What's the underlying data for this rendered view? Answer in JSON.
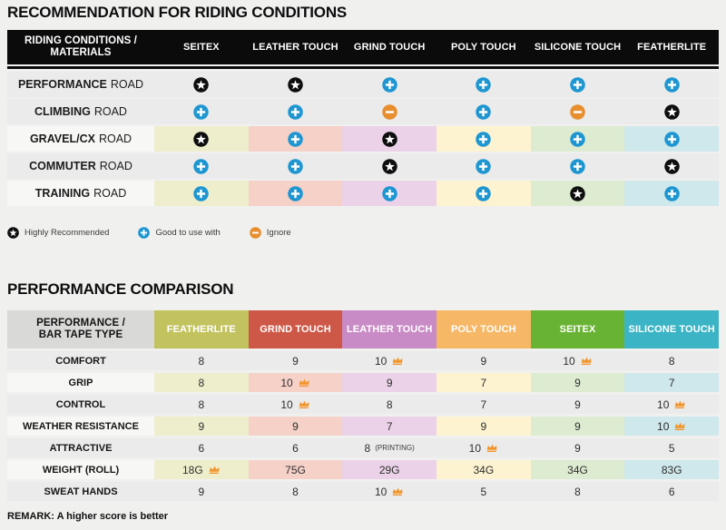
{
  "chart_data": [
    {
      "type": "table",
      "title": "RECOMMENDATION FOR RIDING CONDITIONS",
      "header": {
        "label": [
          "RIDING CONDITIONS /",
          "MATERIALS"
        ],
        "columns": [
          "SEITEX",
          "LEATHER TOUCH",
          "GRIND TOUCH",
          "POLY TOUCH",
          "SILICONE TOUCH",
          "FEATHERLITE"
        ]
      },
      "rows": [
        {
          "label_bold": "PERFORMANCE",
          "label_rest": "ROAD",
          "tinted": false,
          "icons": [
            "star",
            "star",
            "plus",
            "plus",
            "plus",
            "plus"
          ]
        },
        {
          "label_bold": "CLIMBING",
          "label_rest": "ROAD",
          "tinted": false,
          "icons": [
            "plus",
            "plus",
            "minus",
            "plus",
            "minus",
            "star"
          ]
        },
        {
          "label_bold": "GRAVEL/CX",
          "label_rest": "ROAD",
          "tinted": true,
          "icons": [
            "star",
            "plus",
            "star",
            "plus",
            "plus",
            "plus"
          ]
        },
        {
          "label_bold": "COMMUTER",
          "label_rest": "ROAD",
          "tinted": false,
          "icons": [
            "plus",
            "plus",
            "star",
            "plus",
            "plus",
            "star"
          ]
        },
        {
          "label_bold": "TRAINING",
          "label_rest": "ROAD",
          "tinted": true,
          "icons": [
            "plus",
            "plus",
            "plus",
            "plus",
            "star",
            "plus"
          ]
        }
      ],
      "legend": [
        {
          "icon": "star",
          "label": "Highly Recommended"
        },
        {
          "icon": "plus",
          "label": "Good to use with"
        },
        {
          "icon": "minus",
          "label": "Ignore"
        }
      ]
    },
    {
      "type": "table",
      "title": "PERFORMANCE COMPARISON",
      "header": {
        "label": [
          "PERFORMANCE /",
          "BAR TAPE TYPE"
        ],
        "columns": [
          {
            "label": "FEATHERLITE",
            "color": "#c2c25e"
          },
          {
            "label": "GRIND TOUCH",
            "color": "#ce5847"
          },
          {
            "label": "LEATHER TOUCH",
            "color": "#c98bc5"
          },
          {
            "label": "POLY TOUCH",
            "color": "#f6b766"
          },
          {
            "label": "SEITEX",
            "color": "#69b334"
          },
          {
            "label": "SILICONE TOUCH",
            "color": "#3bb4c5"
          }
        ]
      },
      "rows": [
        {
          "label": "COMFORT",
          "tinted": false,
          "cells": [
            {
              "value": "8"
            },
            {
              "value": "9"
            },
            {
              "value": "10",
              "crown": true
            },
            {
              "value": "9"
            },
            {
              "value": "10",
              "crown": true
            },
            {
              "value": "8"
            }
          ]
        },
        {
          "label": "GRIP",
          "tinted": true,
          "cells": [
            {
              "value": "8"
            },
            {
              "value": "10",
              "crown": true
            },
            {
              "value": "9"
            },
            {
              "value": "7"
            },
            {
              "value": "9"
            },
            {
              "value": "7"
            }
          ]
        },
        {
          "label": "CONTROL",
          "tinted": false,
          "cells": [
            {
              "value": "8"
            },
            {
              "value": "10",
              "crown": true
            },
            {
              "value": "8"
            },
            {
              "value": "7"
            },
            {
              "value": "9"
            },
            {
              "value": "10",
              "crown": true
            }
          ]
        },
        {
          "label": "WEATHER RESISTANCE",
          "tinted": true,
          "cells": [
            {
              "value": "9"
            },
            {
              "value": "9"
            },
            {
              "value": "7"
            },
            {
              "value": "9"
            },
            {
              "value": "9"
            },
            {
              "value": "10",
              "crown": true
            }
          ]
        },
        {
          "label": "ATTRACTIVE",
          "tinted": false,
          "cells": [
            {
              "value": "6"
            },
            {
              "value": "6"
            },
            {
              "value": "8",
              "note": "(PRINTING)"
            },
            {
              "value": "10",
              "crown": true
            },
            {
              "value": "9"
            },
            {
              "value": "5"
            }
          ]
        },
        {
          "label": "WEIGHT (ROLL)",
          "tinted": true,
          "cells": [
            {
              "value": "18G",
              "crown": true
            },
            {
              "value": "75G"
            },
            {
              "value": "29G"
            },
            {
              "value": "34G"
            },
            {
              "value": "34G"
            },
            {
              "value": "83G"
            }
          ]
        },
        {
          "label": "SWEAT HANDS",
          "tinted": false,
          "cells": [
            {
              "value": "9"
            },
            {
              "value": "8"
            },
            {
              "value": "10",
              "crown": true
            },
            {
              "value": "5"
            },
            {
              "value": "8"
            },
            {
              "value": "6"
            }
          ]
        }
      ],
      "remark": "REMARK: A higher score is better"
    }
  ],
  "icon_meaning": {
    "star": "Highly Recommended",
    "plus": "Good to use with",
    "minus": "Ignore",
    "crown": "Best score"
  },
  "colors": {
    "page_background": "#f0f0ef",
    "table_header_black": "#0b0b0b",
    "row_gray": "#ebebeb",
    "row_light_label": "#f7f7f6",
    "tints": [
      "#eeeecd",
      "#f5d1c8",
      "#ebd2e8",
      "#fdf3d0",
      "#ddecd0",
      "#cfe8ec"
    ],
    "star": "#0e0e0e",
    "plus": "#1e96d2",
    "minus": "#e78e2e",
    "crown": "#f39429",
    "perf_label_header": "#d9d9d8"
  }
}
